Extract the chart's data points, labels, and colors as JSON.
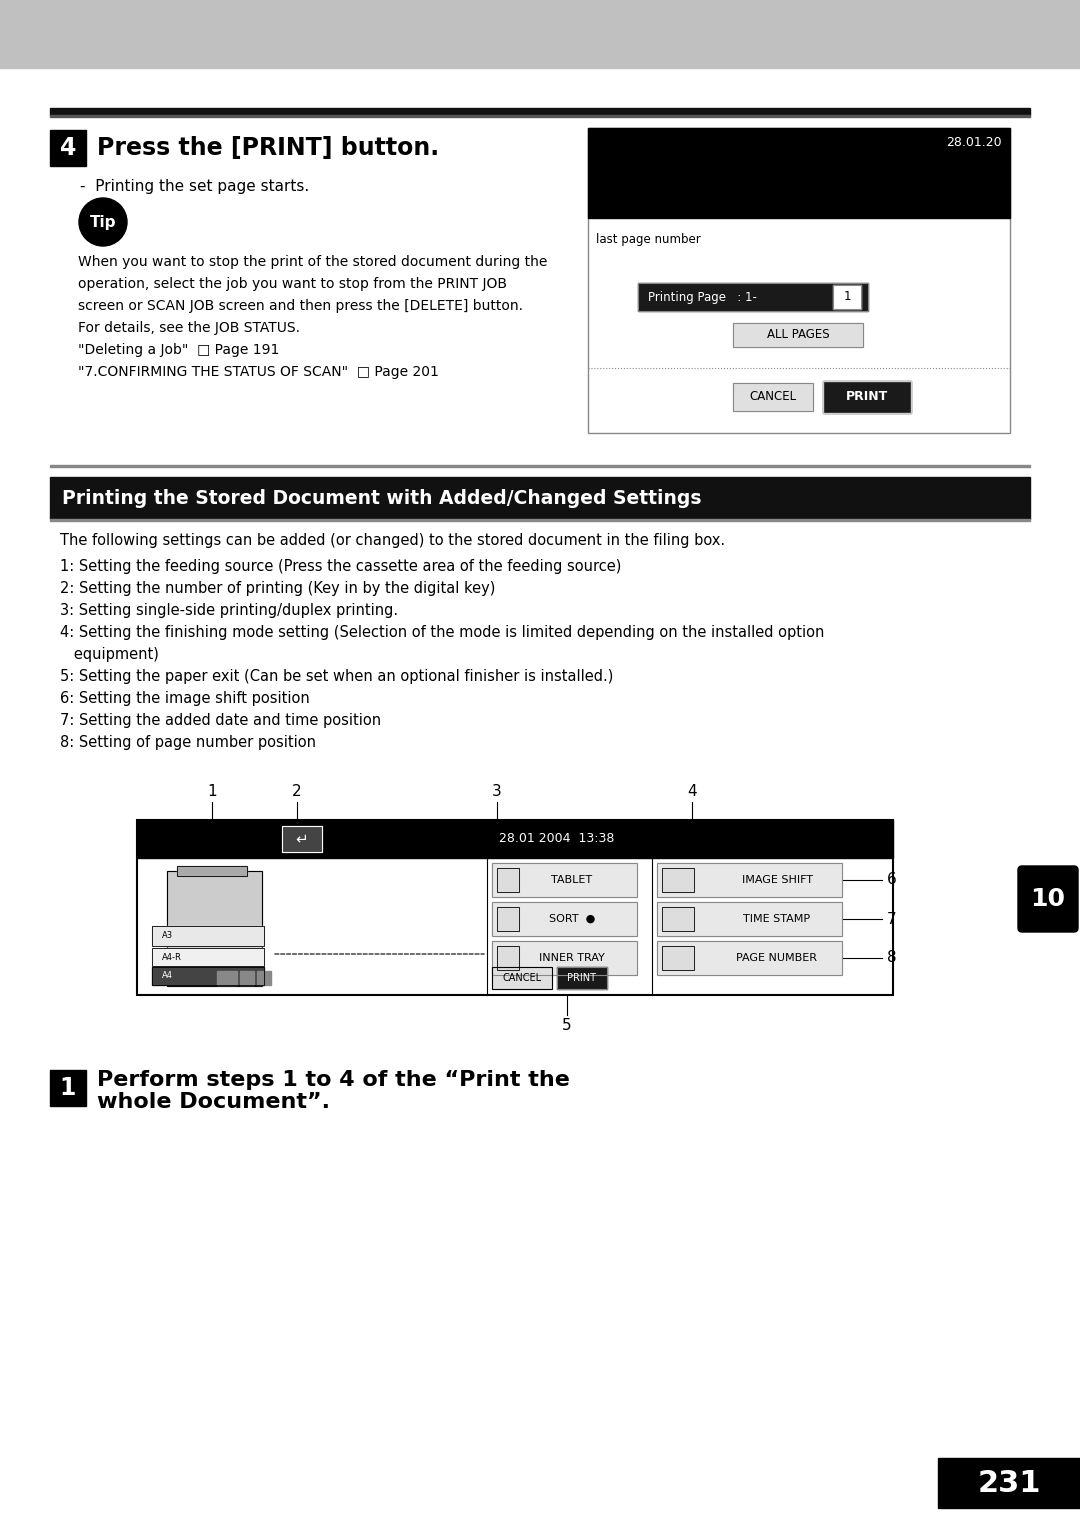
{
  "bg_color": "#ffffff",
  "header_bg": "#c8c8c8",
  "page_number": "231",
  "section_title_4": "Press the [PRINT] button.",
  "bullet_text": "-  Printing the set page starts.",
  "tip_text_lines": [
    "When you want to stop the print of the stored document during the",
    "operation, select the job you want to stop from the PRINT JOB",
    "screen or SCAN JOB screen and then press the [DELETE] button.",
    "For details, see the JOB STATUS.",
    "\"Deleting a Job\"  □ Page 191",
    "\"7.CONFIRMING THE STATUS OF SCAN\"  □ Page 201"
  ],
  "section_title_main": "Printing the Stored Document with Added/Changed Settings",
  "intro_text": "The following settings can be added (or changed) to the stored document in the filing box.",
  "settings_list": [
    "1: Setting the feeding source (Press the cassette area of the feeding source)",
    "2: Setting the number of printing (Key in by the digital key)",
    "3: Setting single-side printing/duplex printing.",
    "4: Setting the finishing mode setting (Selection of the mode is limited depending on the installed option",
    "   equipment)",
    "5: Setting the paper exit (Can be set when an optional finisher is installed.)",
    "6: Setting the image shift position",
    "7: Setting the added date and time position",
    "8: Setting of page number position"
  ],
  "step1_line1": "Perform steps 1 to 4 of the “Print the",
  "step1_line2": "whole Document”.",
  "screen_time": "28.01.20",
  "screen_time2": "28.01 2004  13:38"
}
